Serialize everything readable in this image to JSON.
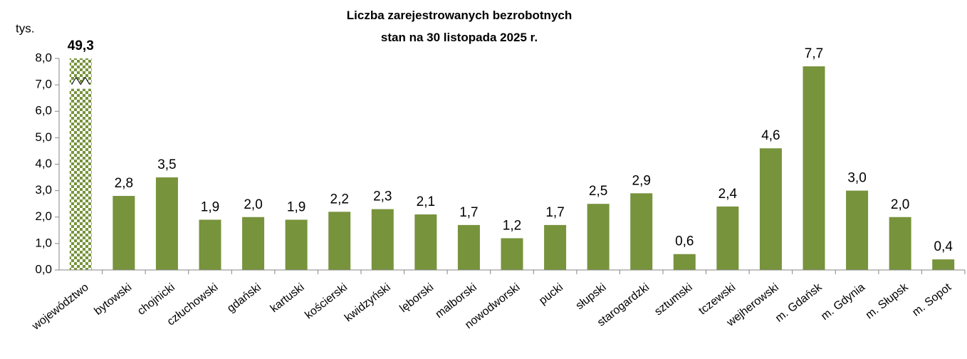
{
  "chart_data": {
    "type": "bar",
    "title": "Liczba zarejestrowanych bezrobotnych",
    "subtitle": "stan na 30 listopada 2025 r.",
    "y_label": "tys.",
    "categories": [
      "województwo",
      "bytowski",
      "chojnicki",
      "człuchowski",
      "gdański",
      "kartuski",
      "kościerski",
      "kwidzyński",
      "lęborski",
      "malborski",
      "nowodworski",
      "pucki",
      "słupski",
      "starogardzki",
      "sztumski",
      "tczewski",
      "wejherowski",
      "m. Gdańsk",
      "m. Gdynia",
      "m. Słupsk",
      "m. Sopot"
    ],
    "values": [
      49.3,
      2.8,
      3.5,
      1.9,
      2.0,
      1.9,
      2.2,
      2.3,
      2.1,
      1.7,
      1.2,
      1.7,
      2.5,
      2.9,
      0.6,
      2.4,
      4.6,
      7.7,
      3.0,
      2.0,
      0.4
    ],
    "value_labels": [
      "49,3",
      "2,8",
      "3,5",
      "1,9",
      "2,0",
      "1,9",
      "2,2",
      "2,3",
      "2,1",
      "1,7",
      "1,2",
      "1,7",
      "2,5",
      "2,9",
      "0,6",
      "2,4",
      "4,6",
      "7,7",
      "3,0",
      "2,0",
      "0,4"
    ],
    "color": "#77933c",
    "ylim": [
      0,
      8
    ],
    "yticks": [
      {
        "value": 0,
        "label": "0,0"
      },
      {
        "value": 1,
        "label": "1,0"
      },
      {
        "value": 2,
        "label": "2,0"
      },
      {
        "value": 3,
        "label": "3,0"
      },
      {
        "value": 4,
        "label": "4,0"
      },
      {
        "value": 5,
        "label": "5,0"
      },
      {
        "value": 6,
        "label": "6,0"
      },
      {
        "value": 7,
        "label": "7,0"
      },
      {
        "value": 8,
        "label": "8,0"
      }
    ],
    "grid": false
  }
}
